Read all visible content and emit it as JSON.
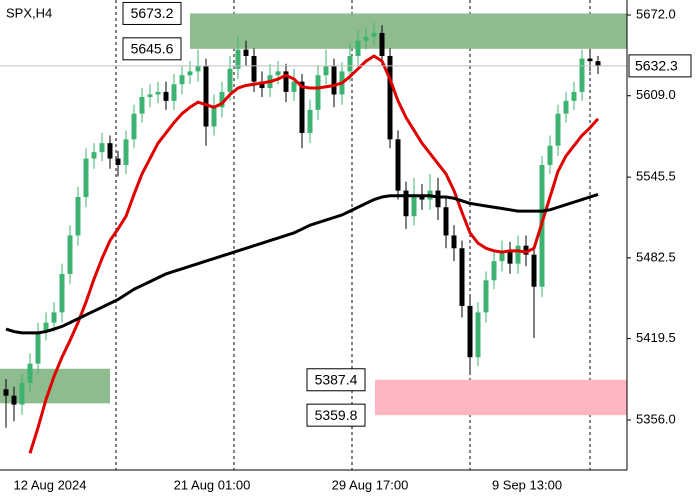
{
  "chart_data": {
    "type": "candlestick",
    "title": "SPX,H4",
    "open": [
      5380,
      5375,
      5368,
      5385,
      5400,
      5425,
      5432,
      5440,
      5470,
      5500,
      5530,
      5560,
      5565,
      5572,
      5560,
      5555,
      5575,
      5595,
      5608,
      5610,
      5612,
      5605,
      5618,
      5625,
      5628,
      5632,
      5585,
      5600,
      5612,
      5630,
      5645,
      5640,
      5620,
      5615,
      5625,
      5628,
      5612,
      5620,
      5580,
      5598,
      5625,
      5632,
      5610,
      5628,
      5640,
      5652,
      5655,
      5658,
      5640,
      5575,
      5535,
      5515,
      5530,
      5528,
      5535,
      5522,
      5500,
      5490,
      5445,
      5405,
      5440,
      5465,
      5480,
      5488,
      5478,
      5492,
      5485,
      5460,
      5555,
      5570,
      5595,
      5605,
      5612,
      5638,
      5636
    ],
    "high": [
      5388,
      5382,
      5392,
      5408,
      5432,
      5440,
      5448,
      5478,
      5508,
      5538,
      5568,
      5572,
      5580,
      5578,
      5566,
      5582,
      5602,
      5615,
      5618,
      5620,
      5620,
      5626,
      5632,
      5636,
      5645,
      5638,
      5610,
      5620,
      5640,
      5655,
      5652,
      5646,
      5628,
      5634,
      5636,
      5634,
      5630,
      5626,
      5606,
      5633,
      5645,
      5638,
      5635,
      5650,
      5660,
      5662,
      5666,
      5664,
      5646,
      5582,
      5542,
      5545,
      5540,
      5548,
      5545,
      5530,
      5508,
      5496,
      5452,
      5448,
      5472,
      5488,
      5496,
      5495,
      5500,
      5500,
      5492,
      5562,
      5578,
      5602,
      5612,
      5620,
      5645,
      5645,
      5640
    ],
    "low": [
      5350,
      5355,
      5360,
      5378,
      5392,
      5418,
      5425,
      5432,
      5462,
      5492,
      5522,
      5552,
      5558,
      5552,
      5546,
      5548,
      5568,
      5588,
      5600,
      5603,
      5598,
      5598,
      5610,
      5618,
      5620,
      5570,
      5578,
      5592,
      5605,
      5622,
      5632,
      5612,
      5608,
      5608,
      5618,
      5604,
      5605,
      5568,
      5572,
      5590,
      5618,
      5600,
      5602,
      5620,
      5632,
      5645,
      5648,
      5632,
      5568,
      5528,
      5505,
      5508,
      5520,
      5520,
      5512,
      5490,
      5480,
      5436,
      5392,
      5398,
      5432,
      5458,
      5472,
      5470,
      5470,
      5476,
      5420,
      5452,
      5548,
      5562,
      5588,
      5598,
      5605,
      5628,
      5626
    ],
    "close": [
      5375,
      5368,
      5385,
      5400,
      5425,
      5432,
      5440,
      5470,
      5500,
      5530,
      5560,
      5565,
      5572,
      5560,
      5555,
      5575,
      5595,
      5608,
      5610,
      5612,
      5605,
      5618,
      5625,
      5628,
      5632,
      5585,
      5600,
      5612,
      5630,
      5645,
      5640,
      5620,
      5615,
      5625,
      5628,
      5612,
      5620,
      5580,
      5598,
      5625,
      5632,
      5610,
      5628,
      5640,
      5652,
      5655,
      5658,
      5640,
      5575,
      5535,
      5515,
      5530,
      5528,
      5535,
      5522,
      5500,
      5490,
      5445,
      5405,
      5440,
      5465,
      5480,
      5488,
      5478,
      5492,
      5485,
      5460,
      5555,
      5570,
      5595,
      5605,
      5612,
      5638,
      5636,
      5632.3
    ],
    "up_color": "#3cb371",
    "down_color": "#000000",
    "series": [
      {
        "color": "#e00000",
        "values": [
          null,
          null,
          null,
          5330,
          5350,
          5372,
          5390,
          5405,
          5418,
          5432,
          5448,
          5466,
          5482,
          5496,
          5505,
          5515,
          5532,
          5548,
          5560,
          5572,
          5580,
          5588,
          5595,
          5600,
          5604,
          5602,
          5600,
          5603,
          5610,
          5615,
          5617,
          5618,
          5619,
          5620,
          5622,
          5625,
          5622,
          5616,
          5615,
          5615,
          5616,
          5617,
          5619,
          5624,
          5630,
          5636,
          5640,
          5636,
          5622,
          5605,
          5592,
          5582,
          5572,
          5564,
          5556,
          5548,
          5535,
          5518,
          5502,
          5494,
          5490,
          5488,
          5487,
          5488,
          5488,
          5487,
          5490,
          5510,
          5530,
          5550,
          5562,
          5570,
          5578,
          5584,
          5591
        ]
      },
      {
        "color": "#000000",
        "values": [
          5427,
          5425,
          5424,
          5424,
          5424,
          5425,
          5427,
          5429,
          5432,
          5435,
          5438,
          5441,
          5444,
          5447,
          5450,
          5454,
          5458,
          5461,
          5464,
          5467,
          5470,
          5472,
          5474,
          5476,
          5478,
          5480,
          5482,
          5484,
          5486,
          5488,
          5490,
          5492,
          5494,
          5496,
          5498,
          5500,
          5502,
          5505,
          5508,
          5510,
          5512,
          5514,
          5516,
          5519,
          5522,
          5525,
          5528,
          5530,
          5531,
          5531,
          5531,
          5531,
          5531,
          5531,
          5530,
          5530,
          5529,
          5527,
          5525,
          5524,
          5523,
          5522,
          5521,
          5520,
          5519,
          5519,
          5519,
          5519,
          5520,
          5522,
          5524,
          5526,
          5528,
          5530,
          5532
        ]
      }
    ],
    "zones": [
      {
        "top": 5673.2,
        "bottom": 5645.6,
        "color": "#8fbc8f",
        "labeled": true
      },
      {
        "top": 5396,
        "bottom": 5369,
        "color": "#8fbc8f",
        "labeled": false
      },
      {
        "top": 5387.4,
        "bottom": 5359.8,
        "color": "#ffb6c1",
        "labeled": true
      }
    ],
    "x_labels": [
      "12 Aug 2024",
      "21 Aug 01:00",
      "29 Aug 17:00",
      "9 Sep 13:00"
    ],
    "ylim": [
      5317,
      5683.7
    ],
    "yticks": [
      {
        "value": 5356,
        "label": "5356.0"
      },
      {
        "value": 5419.5,
        "label": "5419.5"
      },
      {
        "value": 5482.5,
        "label": "5482.5"
      },
      {
        "value": 5545.5,
        "label": "5545.5"
      },
      {
        "value": 5609,
        "label": "5609.0"
      },
      {
        "value": 5672,
        "label": "5672.0"
      }
    ],
    "grid": true
  }
}
